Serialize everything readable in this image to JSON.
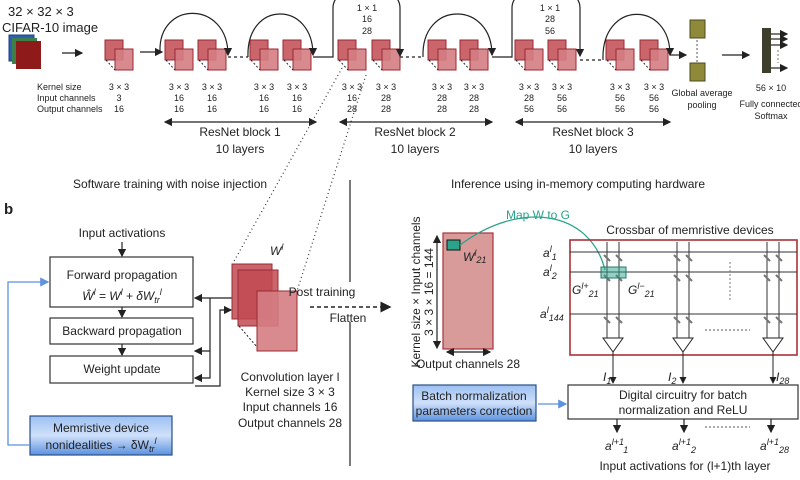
{
  "panel_a": {
    "input_size": "32 × 32 × 3",
    "input_name": "CIFAR-10 image",
    "row_labels": [
      "Kernel size",
      "Input channels",
      "Output channels"
    ],
    "layers": [
      [
        "3 × 3",
        "3",
        "16"
      ],
      [
        "3 × 3",
        "16",
        "16"
      ],
      [
        "3 × 3",
        "16",
        "16"
      ],
      [
        "3 × 3",
        "16",
        "16"
      ],
      [
        "3 × 3",
        "16",
        "16"
      ],
      [
        "3 × 3",
        "16",
        "28"
      ],
      [
        "3 × 3",
        "28",
        "28"
      ],
      [
        "3 × 3",
        "28",
        "28"
      ],
      [
        "3 × 3",
        "28",
        "28"
      ],
      [
        "3 × 3",
        "28",
        "56"
      ],
      [
        "3 × 3",
        "56",
        "56"
      ],
      [
        "3 × 3",
        "56",
        "56"
      ],
      [
        "3 × 3",
        "56",
        "56"
      ]
    ],
    "skip1": [
      "1 × 1",
      "16",
      "28"
    ],
    "skip2": [
      "1 × 1",
      "28",
      "56"
    ],
    "blocks": [
      {
        "name": "ResNet block 1",
        "layers": "10 layers"
      },
      {
        "name": "ResNet block 2",
        "layers": "10 layers"
      },
      {
        "name": "ResNet block 3",
        "layers": "10 layers"
      }
    ],
    "pooling": [
      "Global average",
      "pooling"
    ],
    "fc": [
      "56 × 10",
      "Fully connected",
      "Softmax"
    ]
  },
  "panel_b": {
    "label": "b",
    "left_title": "Software training with noise injection",
    "right_title": "Inference using in-memory computing hardware",
    "input_activations": "Input activations",
    "forward": "Forward propagation",
    "forward_formula": {
      "w_hat": "Ŵ",
      "l": "l",
      "eq": " = W",
      "l2": "l",
      "plus": " + δW",
      "tr": "tr",
      "l3": "l"
    },
    "backward": "Backward propagation",
    "weight_update": "Weight update",
    "nonideal": [
      "Memristive device",
      "nonidealities → δW",
      "tr",
      "l"
    ],
    "w_label": {
      "w": "W",
      "l": "l"
    },
    "post_training": "Post training",
    "flatten": "Flatten",
    "conv_info": [
      "Convolution layer l",
      "Kernel size 3 × 3",
      "Input channels 16",
      "Output channels 28"
    ],
    "matrix_ylabel": "Kernel size × Input channels",
    "matrix_ydim": "3 × 3 × 16 = 144",
    "matrix_xlabel": "Output channels 28",
    "matrix_elem": {
      "w": "W",
      "l": "l",
      "sub": "21"
    },
    "map_label": "Map W to G",
    "crossbar_title": "Crossbar of memristive devices",
    "rows": [
      {
        "a": "a",
        "sup": "l",
        "sub": "1"
      },
      {
        "a": "a",
        "sup": "l",
        "sub": "2"
      },
      {
        "a": "a",
        "sup": "l",
        "sub": "144"
      }
    ],
    "g_plus": {
      "g": "G",
      "sup": "l+",
      "sub": "21"
    },
    "g_minus": {
      "g": "G",
      "sup": "l−",
      "sub": "21"
    },
    "currents": [
      {
        "i": "I",
        "sub": "1"
      },
      {
        "i": "I",
        "sub": "2"
      },
      {
        "i": "I",
        "sub": "28"
      }
    ],
    "digital": [
      "Digital circuitry for batch",
      "normalization and ReLU"
    ],
    "batchnorm": [
      "Batch normalization",
      "parameters correction"
    ],
    "outputs": [
      {
        "a": "a",
        "sup": "l+1",
        "sub": "1"
      },
      {
        "a": "a",
        "sup": "l+1",
        "sub": "2"
      },
      {
        "a": "a",
        "sup": "l+1",
        "sub": "28"
      }
    ],
    "footer": "Input activations for (l+1)th layer"
  },
  "colors": {
    "accent_teal": "#2aa38a",
    "crossbar_red": "#a8323a",
    "blue_box": "#5c92e0",
    "olive": "#8f8a3a"
  }
}
